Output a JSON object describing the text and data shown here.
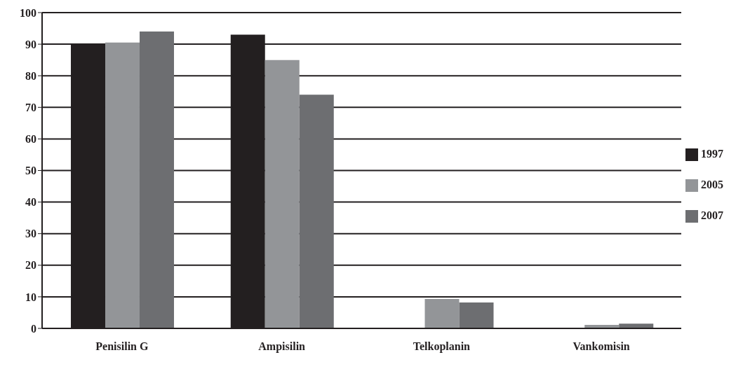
{
  "chart_data": {
    "type": "bar",
    "categories": [
      "Penisilin G",
      "Ampisilin",
      "Telkoplanin",
      "Vankomisin"
    ],
    "series": [
      {
        "name": "1997",
        "color": "#231f20",
        "values": [
          90,
          93,
          null,
          null
        ]
      },
      {
        "name": "2005",
        "color": "#939598",
        "values": [
          90.5,
          85,
          9.3,
          1.1
        ]
      },
      {
        "name": "2007",
        "color": "#6d6e71",
        "values": [
          94,
          74,
          8.2,
          1.5
        ]
      }
    ],
    "ylim": [
      0,
      100
    ],
    "yticks": [
      0,
      10,
      20,
      30,
      40,
      50,
      60,
      70,
      80,
      90,
      100
    ],
    "grid": "y",
    "legend": "right"
  }
}
